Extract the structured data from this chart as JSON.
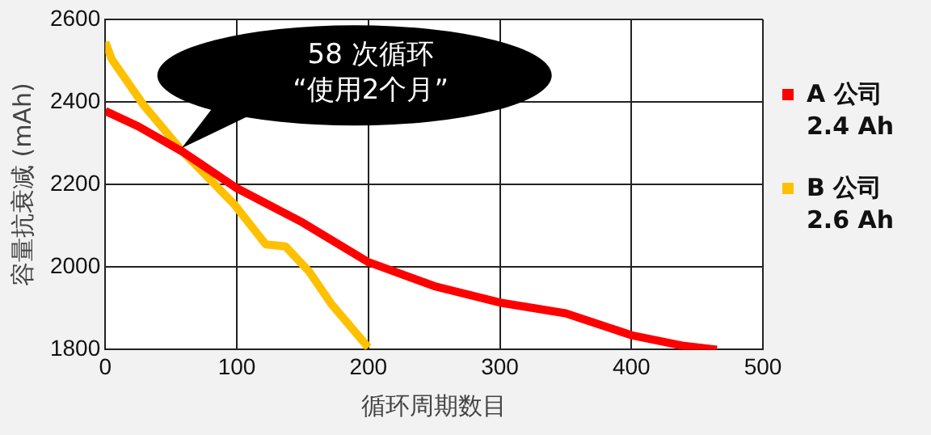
{
  "chart_data": {
    "type": "line",
    "xlabel": "循环周期数目",
    "ylabel": "容量抗衰减 (mAh)",
    "xlim": [
      0,
      500
    ],
    "xticks": [
      0,
      100,
      200,
      300,
      400,
      500
    ],
    "ylim": [
      1800,
      2600
    ],
    "yticks": [
      1800,
      2000,
      2200,
      2400,
      2600
    ],
    "grid": true,
    "legend": "right",
    "marker": "none",
    "line_style": "solid",
    "annotations": [
      "58 次循环\n“使用2个月”"
    ],
    "series": [
      {
        "name": "A 公司\n2.4 Ah",
        "color": "#ff0000",
        "x": [
          0,
          25,
          59,
          100,
          150,
          200,
          250,
          300,
          350,
          400,
          440,
          465
        ],
        "values": [
          2378,
          2341,
          2279,
          2191,
          2108,
          2012,
          1954,
          1914,
          1888,
          1835,
          1809,
          1800
        ]
      },
      {
        "name": "B 公司\n2.6 Ah",
        "color": "#ffc000",
        "x": [
          0,
          5,
          29,
          59,
          98,
          122,
          137,
          155,
          172,
          200
        ],
        "values": [
          2545,
          2503,
          2393,
          2279,
          2152,
          2055,
          2050,
          1989,
          1910,
          1805
        ]
      }
    ]
  }
}
